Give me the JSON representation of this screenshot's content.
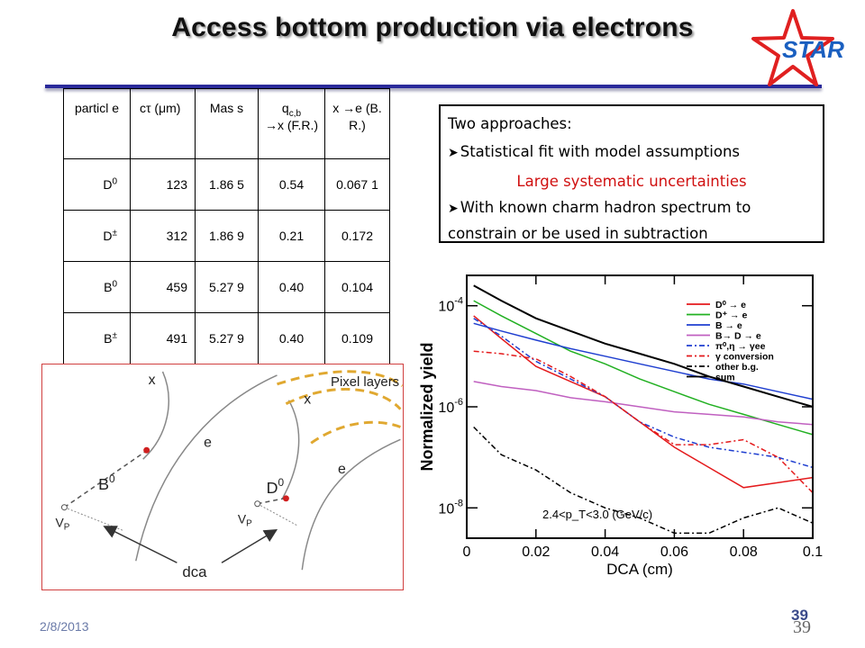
{
  "slide": {
    "title": "Access bottom production via electrons",
    "logo_text": "STAR",
    "footer_date": "2/8/2013",
    "page_number": "39"
  },
  "table": {
    "headers": {
      "particle": "particl e",
      "ctau": "cτ (μm)",
      "mass": "Mas s",
      "fr_main": "q",
      "fr_sub": "c,b",
      "fr_rest": "→x (F.R.)",
      "br": "x →e (B.R.)"
    },
    "rows": [
      {
        "base": "D",
        "sup": "0",
        "ctau": "123",
        "mass": "1.86 5",
        "fr": "0.54",
        "br": "0.067 1"
      },
      {
        "base": "D",
        "sup": "±",
        "ctau": "312",
        "mass": "1.86 9",
        "fr": "0.21",
        "br": "0.172"
      },
      {
        "base": "B",
        "sup": "0",
        "ctau": "459",
        "mass": "5.27 9",
        "fr": "0.40",
        "br": "0.104"
      },
      {
        "base": "B",
        "sup": "±",
        "ctau": "491",
        "mass": "5.27 9",
        "fr": "0.40",
        "br": "0.109"
      }
    ]
  },
  "approaches": {
    "heading": "Two approaches:",
    "item1": "Statistical fit with model assumptions",
    "item1_note": "Large systematic uncertainties",
    "item2": "With known charm hadron spectrum to constrain or be used in subtraction",
    "bullet_icon": "arrow-bullet-icon"
  },
  "diagram": {
    "x_left": "x",
    "x_right": "x",
    "e_left": "e",
    "e_right": "e",
    "b0_base": "B",
    "b0_sup": "0",
    "d0_base": "D",
    "d0_sup": "0",
    "vp_base": "V",
    "vp_sub": "P",
    "pixel_layers": "Pixel layers",
    "dca": "dca"
  },
  "chart_data": {
    "type": "line",
    "xlabel": "DCA (cm)",
    "ylabel": "Normalized yield",
    "xlim": [
      0,
      0.1
    ],
    "ylim_log10": [
      -8.6,
      -3.4
    ],
    "log_y": true,
    "x_ticks": [
      "0",
      "0.02",
      "0.04",
      "0.06",
      "0.08",
      "0.1"
    ],
    "y_ticks": [
      {
        "base": "10",
        "exp": "-4",
        "value": -4
      },
      {
        "base": "10",
        "exp": "-6",
        "value": -6
      },
      {
        "base": "10",
        "exp": "-8",
        "value": -8
      }
    ],
    "annotation": "2.4<p_T<3.0 (GeV/c)",
    "legend_position": "top-right",
    "x": [
      0.002,
      0.01,
      0.02,
      0.03,
      0.04,
      0.05,
      0.06,
      0.07,
      0.08,
      0.09,
      0.1
    ],
    "series": [
      {
        "name": "D⁰ → e",
        "color": "#e41a1c",
        "dash": "solid",
        "log10_y": [
          -4.2,
          -4.65,
          -5.2,
          -5.5,
          -5.8,
          -6.3,
          -6.8,
          -7.2,
          -7.6,
          -7.5,
          -7.4
        ]
      },
      {
        "name": "D⁺ → e",
        "color": "#22b022",
        "dash": "solid",
        "log10_y": [
          -3.9,
          -4.2,
          -4.55,
          -4.9,
          -5.15,
          -5.45,
          -5.7,
          -5.95,
          -6.15,
          -6.35,
          -6.55
        ]
      },
      {
        "name": "B → e",
        "color": "#1f3fd0",
        "dash": "solid",
        "log10_y": [
          -4.35,
          -4.5,
          -4.68,
          -4.85,
          -5.0,
          -5.15,
          -5.3,
          -5.45,
          -5.55,
          -5.7,
          -5.85
        ]
      },
      {
        "name": "B→ D → e",
        "color": "#c060c0",
        "dash": "solid",
        "log10_y": [
          -5.5,
          -5.6,
          -5.68,
          -5.82,
          -5.9,
          -6.0,
          -6.1,
          -6.15,
          -6.2,
          -6.3,
          -6.35
        ]
      },
      {
        "name": "π⁰,η → γee",
        "color": "#1f3fd0",
        "dash": "dashdot",
        "log10_y": [
          -4.25,
          -4.6,
          -5.1,
          -5.45,
          -5.8,
          -6.3,
          -6.6,
          -6.8,
          -6.9,
          -7.0,
          -7.2
        ]
      },
      {
        "name": "γ conversion",
        "color": "#e41a1c",
        "dash": "dashdot",
        "log10_y": [
          -4.9,
          -4.95,
          -5.05,
          -5.4,
          -5.8,
          -6.3,
          -6.75,
          -6.75,
          -6.65,
          -7.0,
          -7.7
        ]
      },
      {
        "name": "other b.g.",
        "color": "#000000",
        "dash": "dashdot",
        "log10_y": [
          -6.4,
          -6.95,
          -7.25,
          -7.7,
          -8.0,
          -8.2,
          -8.5,
          -8.5,
          -8.2,
          -8.0,
          -8.3
        ]
      },
      {
        "name": "sum",
        "color": "#000000",
        "dash": "solid",
        "log10_y": [
          -3.6,
          -3.9,
          -4.25,
          -4.5,
          -4.75,
          -4.95,
          -5.15,
          -5.4,
          -5.6,
          -5.8,
          -6.0
        ]
      }
    ]
  }
}
